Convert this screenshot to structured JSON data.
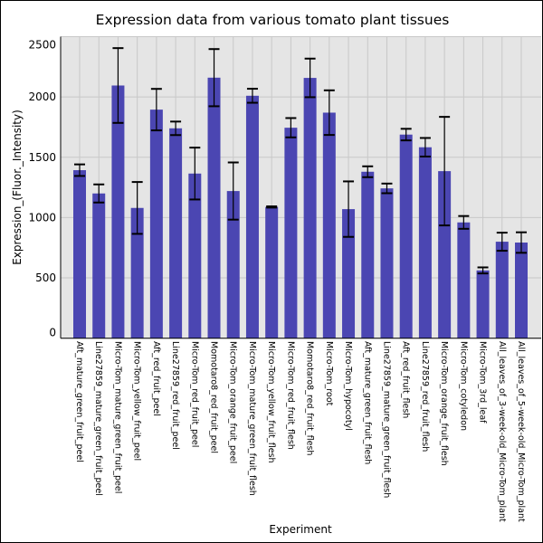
{
  "chart_data": {
    "type": "bar",
    "title": "Expression data from various tomato plant tissues",
    "xlabel": "Experiment",
    "ylabel": "Expression_(Fluor._Intensity)",
    "ylim": [
      0,
      2500
    ],
    "yticks": [
      0,
      500,
      1000,
      1500,
      2000,
      2500
    ],
    "grid": true,
    "bar_color": "#4b46b2",
    "background_color": "#e5e5e5",
    "categories": [
      "Aft_mature_green_fruit_peel",
      "Line27859_mature_green_fruit_peel",
      "Micro-Tom_mature_green_fruit_peel",
      "Micro-Tom_yellow_fruit_peel",
      "Aft_red_fruit_peel",
      "Line27859_red_fruit_peel",
      "Micro-Tom_red_fruit_peel",
      "Momotaro8_red_fruit_peel",
      "Micro-Tom_orange_fruit_peel",
      "Micro-Tom_mature_green_fruit_flesh",
      "Micro-Tom_yellow_fruit_flesh",
      "Micro-Tom_red_fruit_flesh",
      "Momotaro8_red_fruit_flesh",
      "Micro-Tom_root",
      "Micro-Tom_hypocotyl",
      "Aft_mature_green_fruit_flesh",
      "Line27859_mature_green_fruit_flesh",
      "Aft_red_fruit_flesh",
      "Line27859_red_fruit_flesh",
      "Micro-Tom_orange_fruit_flesh",
      "Micro-Tom_cotyledon",
      "Micro-Tom_3rd_leaf",
      "All_leaves_of_3-week-old_Micro-Tom_plant",
      "All_leaves_of_5-week-old_Micro-Tom_plant"
    ],
    "values": [
      1393,
      1200,
      2095,
      1080,
      1895,
      1740,
      1365,
      2160,
      1220,
      2010,
      1088,
      1745,
      2158,
      1870,
      1070,
      1380,
      1242,
      1688,
      1583,
      1385,
      960,
      562,
      800,
      793
    ],
    "errors": [
      48,
      75,
      310,
      215,
      172,
      56,
      215,
      237,
      237,
      58,
      5,
      80,
      160,
      185,
      230,
      45,
      40,
      48,
      77,
      450,
      53,
      25,
      75,
      85
    ]
  }
}
